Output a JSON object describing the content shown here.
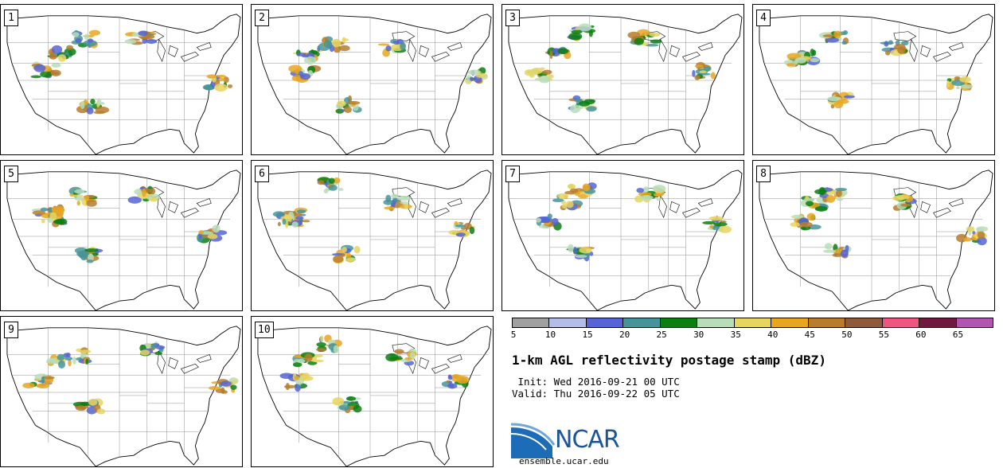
{
  "panels": [
    {
      "label": "1"
    },
    {
      "label": "2"
    },
    {
      "label": "3"
    },
    {
      "label": "4"
    },
    {
      "label": "5"
    },
    {
      "label": "6"
    },
    {
      "label": "7"
    },
    {
      "label": "8"
    },
    {
      "label": "9"
    },
    {
      "label": "10"
    }
  ],
  "colorbar": {
    "colors": [
      "#a0a0a0",
      "#b4bce8",
      "#5565d6",
      "#45949a",
      "#0b7f10",
      "#b8ddb8",
      "#e6d560",
      "#e8a620",
      "#b77c2c",
      "#8e5a3a",
      "#ee5580",
      "#701840",
      "#b055b0"
    ],
    "ticks": [
      "5",
      "10",
      "15",
      "20",
      "25",
      "30",
      "35",
      "40",
      "45",
      "50",
      "55",
      "60",
      "65"
    ]
  },
  "title": "1-km AGL reflectivity postage stamp (dBZ)",
  "init": " Init: Wed 2016-09-21 00 UTC",
  "valid": "Valid: Thu 2016-09-22 05 UTC",
  "logo": {
    "text": "NCAR"
  },
  "site": "ensemble.ucar.edu"
}
